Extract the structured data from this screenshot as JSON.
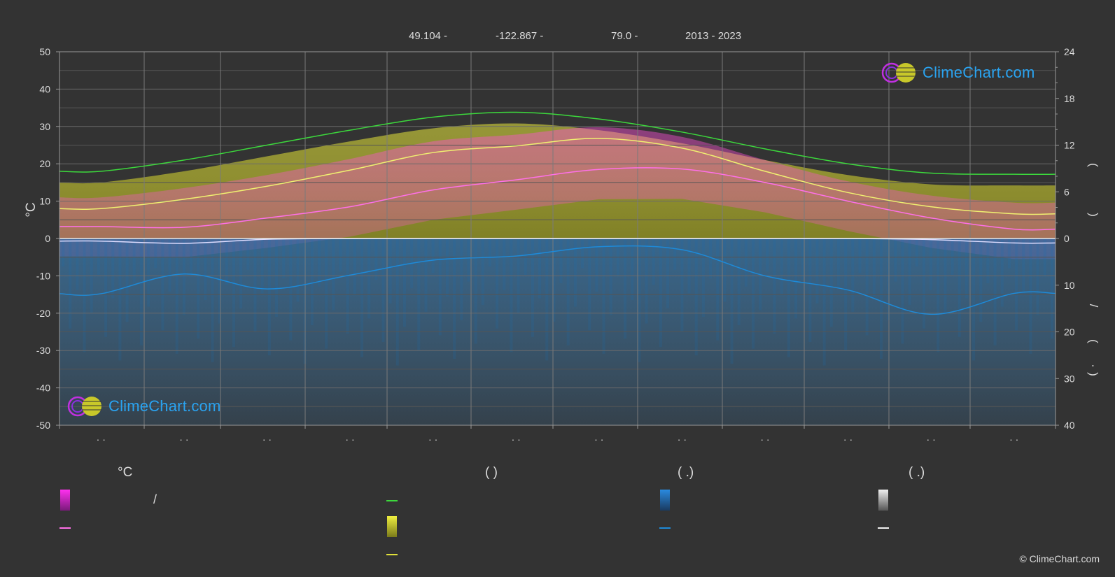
{
  "header": {
    "latitude": "49.104 -",
    "longitude": "-122.867 -",
    "elevation": "79.0 -",
    "years": "2013 - 2023"
  },
  "axes": {
    "left_label": "°C",
    "left_ticks": [
      "50",
      "40",
      "30",
      "20",
      "10",
      "0",
      "-10",
      "-20",
      "-30",
      "-40",
      "-50"
    ],
    "right_ticks_upper": [
      "24",
      "18",
      "12",
      "6",
      "0"
    ],
    "right_ticks_lower": [
      "10",
      "20",
      "30",
      "40"
    ],
    "right_label_fragments": [
      "(",
      ")",
      "/",
      "(",
      "·",
      ")"
    ],
    "month_tick_label": "· ·"
  },
  "legend": {
    "col1_header": "°C",
    "col2_header": "(           )",
    "col3_header": "(    .)",
    "col4_header": "(    .)",
    "col1_item1_text": "/"
  },
  "logo_text": "ClimeChart.com",
  "copyright": "© ClimeChart.com",
  "colors": {
    "background": "#333333",
    "daylight": "#3cd83c",
    "sunshine": "#e0e03a",
    "temp_max_line": "#f0f070",
    "temp_mean_line": "#ff70e8",
    "temp_min_line": "#dcdcff",
    "precip_line": "#1e8ad8",
    "grid": "#707070"
  },
  "chart_data": {
    "type": "line",
    "x": [
      "Jan",
      "Feb",
      "Mar",
      "Apr",
      "May",
      "Jun",
      "Jul",
      "Aug",
      "Sep",
      "Oct",
      "Nov",
      "Dec"
    ],
    "ylim": [
      -50,
      50
    ],
    "y2lim_top": [
      0,
      24
    ],
    "y2lim_bottom": [
      0,
      40
    ],
    "series": [
      {
        "key": "daylight_temp_scale",
        "values": [
          18,
          21,
          25,
          29,
          32.5,
          33.8,
          32,
          28.5,
          24,
          20,
          17.5,
          17.2
        ]
      },
      {
        "key": "sunshine_temp_scale",
        "values": [
          8,
          10.5,
          14,
          18.3,
          23,
          24.8,
          26.8,
          24.2,
          18,
          12.3,
          8.5,
          6.6
        ]
      },
      {
        "key": "mean_temp",
        "values": [
          3.2,
          3.0,
          5.5,
          8.5,
          13.0,
          15.7,
          18.5,
          18.6,
          15.0,
          10.0,
          5.5,
          2.5
        ]
      },
      {
        "key": "min_temp_line",
        "values": [
          -0.7,
          -1.3,
          -0.2,
          0.0,
          0.0,
          0.0,
          0.0,
          0.0,
          0.0,
          0.0,
          -0.3,
          -1.2
        ]
      },
      {
        "key": "precipitation_temp_scale",
        "values": [
          -14.8,
          -9.5,
          -13.5,
          -9.8,
          -5.8,
          -4.7,
          -2.2,
          -3.0,
          -10.0,
          -13.8,
          -20.3,
          -14.7
        ]
      }
    ]
  }
}
